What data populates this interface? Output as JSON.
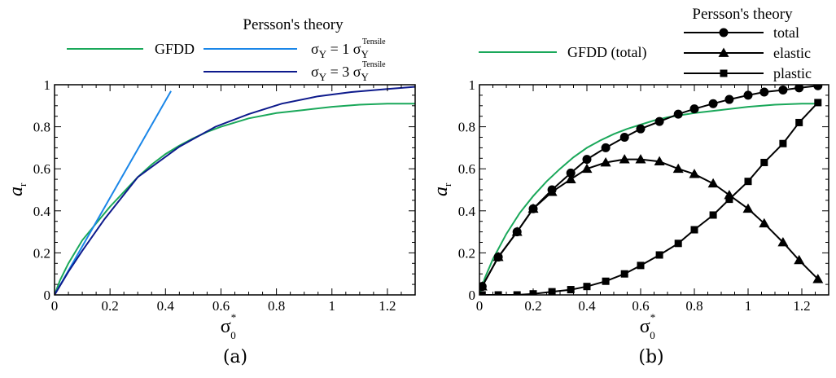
{
  "colors": {
    "gfdd": "#1aa85a",
    "sigma1": "#1a86e8",
    "sigma3": "#0d1a8c",
    "persson": "#000000"
  },
  "chart_data": [
    {
      "id": "a",
      "type": "line",
      "caption": "(a)",
      "xlabel": "σ",
      "xlabel_sub": "0",
      "xlabel_sup": "*",
      "ylabel": "a",
      "ylabel_sub": "r",
      "xlim": [
        0,
        1.3
      ],
      "ylim": [
        0,
        1
      ],
      "xticks": [
        0,
        0.2,
        0.4,
        0.6,
        0.8,
        1,
        1.2
      ],
      "xtick_labels": [
        "0",
        "0.2",
        "0.4",
        "0.6",
        "0.8",
        "1",
        "1.2"
      ],
      "yticks": [
        0,
        0.2,
        0.4,
        0.6,
        0.8,
        1
      ],
      "ytick_labels": [
        "0",
        "0.2",
        "0.4",
        "0.6",
        "0.8",
        "1"
      ],
      "legend_title": "Persson's theory",
      "series": [
        {
          "name": "GFDD",
          "color_key": "gfdd",
          "x": [
            0,
            0.02,
            0.05,
            0.1,
            0.15,
            0.2,
            0.25,
            0.3,
            0.35,
            0.4,
            0.45,
            0.5,
            0.55,
            0.6,
            0.65,
            0.7,
            0.8,
            0.9,
            1.0,
            1.1,
            1.2,
            1.3
          ],
          "y": [
            0,
            0.07,
            0.15,
            0.26,
            0.34,
            0.42,
            0.49,
            0.56,
            0.62,
            0.67,
            0.71,
            0.745,
            0.775,
            0.8,
            0.82,
            0.84,
            0.865,
            0.88,
            0.895,
            0.905,
            0.91,
            0.91
          ]
        },
        {
          "name": "σY = 1 σY Tensile",
          "label_main": "σ",
          "label_sub": "Y",
          "label_mid": " = 1 σ",
          "label_sub2": "Y",
          "label_sup": "Tensile",
          "color_key": "sigma1",
          "x": [
            0,
            0.42
          ],
          "y": [
            0,
            0.97
          ]
        },
        {
          "name": "σY = 3 σY Tensile",
          "label_main": "σ",
          "label_sub": "Y",
          "label_mid": " = 3 σ",
          "label_sub2": "Y",
          "label_sup": "Tensile",
          "color_key": "sigma3",
          "x": [
            0,
            0.05,
            0.1,
            0.18,
            0.3,
            0.45,
            0.58,
            0.7,
            0.82,
            0.95,
            1.07,
            1.2,
            1.3
          ],
          "y": [
            0,
            0.11,
            0.21,
            0.36,
            0.56,
            0.705,
            0.8,
            0.86,
            0.91,
            0.945,
            0.965,
            0.98,
            0.99
          ]
        }
      ]
    },
    {
      "id": "b",
      "type": "line",
      "caption": "(b)",
      "xlabel": "σ",
      "xlabel_sub": "0",
      "xlabel_sup": "*",
      "ylabel": "a",
      "ylabel_sub": "r",
      "xlim": [
        0,
        1.3
      ],
      "ylim": [
        0,
        1
      ],
      "xticks": [
        0,
        0.2,
        0.4,
        0.6,
        0.8,
        1,
        1.2
      ],
      "xtick_labels": [
        "0",
        "0.2",
        "0.4",
        "0.6",
        "0.8",
        "1",
        "1.2"
      ],
      "yticks": [
        0,
        0.2,
        0.4,
        0.6,
        0.8,
        1
      ],
      "ytick_labels": [
        "0",
        "0.2",
        "0.4",
        "0.6",
        "0.8",
        "1"
      ],
      "legend_title": "Persson's theory",
      "series": [
        {
          "name": "GFDD (total)",
          "color_key": "gfdd",
          "marker": "none",
          "x": [
            0,
            0.02,
            0.05,
            0.1,
            0.15,
            0.2,
            0.25,
            0.3,
            0.35,
            0.4,
            0.45,
            0.5,
            0.55,
            0.6,
            0.65,
            0.7,
            0.8,
            0.9,
            1.0,
            1.1,
            1.2,
            1.25
          ],
          "y": [
            0,
            0.08,
            0.17,
            0.29,
            0.39,
            0.47,
            0.54,
            0.6,
            0.655,
            0.7,
            0.735,
            0.765,
            0.79,
            0.81,
            0.83,
            0.845,
            0.865,
            0.88,
            0.895,
            0.905,
            0.91,
            0.91
          ]
        },
        {
          "name": "total",
          "color_key": "persson",
          "marker": "circle",
          "x": [
            0.01,
            0.07,
            0.14,
            0.2,
            0.27,
            0.34,
            0.4,
            0.47,
            0.54,
            0.6,
            0.67,
            0.74,
            0.8,
            0.87,
            0.93,
            1.0,
            1.06,
            1.13,
            1.19,
            1.26
          ],
          "y": [
            0.04,
            0.18,
            0.3,
            0.41,
            0.5,
            0.58,
            0.645,
            0.7,
            0.75,
            0.79,
            0.825,
            0.86,
            0.885,
            0.91,
            0.93,
            0.95,
            0.965,
            0.975,
            0.985,
            0.995
          ]
        },
        {
          "name": "elastic",
          "color_key": "persson",
          "marker": "triangle",
          "x": [
            0.01,
            0.07,
            0.14,
            0.2,
            0.27,
            0.34,
            0.4,
            0.47,
            0.54,
            0.6,
            0.67,
            0.74,
            0.8,
            0.87,
            0.93,
            1.0,
            1.06,
            1.13,
            1.19,
            1.26
          ],
          "y": [
            0.04,
            0.18,
            0.3,
            0.41,
            0.49,
            0.55,
            0.6,
            0.63,
            0.645,
            0.645,
            0.635,
            0.6,
            0.575,
            0.53,
            0.475,
            0.41,
            0.34,
            0.25,
            0.165,
            0.075
          ]
        },
        {
          "name": "plastic",
          "color_key": "persson",
          "marker": "square",
          "x": [
            0.01,
            0.07,
            0.14,
            0.2,
            0.27,
            0.34,
            0.4,
            0.47,
            0.54,
            0.6,
            0.67,
            0.74,
            0.8,
            0.87,
            0.93,
            1.0,
            1.06,
            1.13,
            1.19,
            1.26
          ],
          "y": [
            0,
            0,
            0,
            0.005,
            0.015,
            0.025,
            0.04,
            0.065,
            0.1,
            0.14,
            0.19,
            0.245,
            0.31,
            0.38,
            0.455,
            0.54,
            0.63,
            0.72,
            0.82,
            0.915
          ]
        }
      ]
    }
  ]
}
